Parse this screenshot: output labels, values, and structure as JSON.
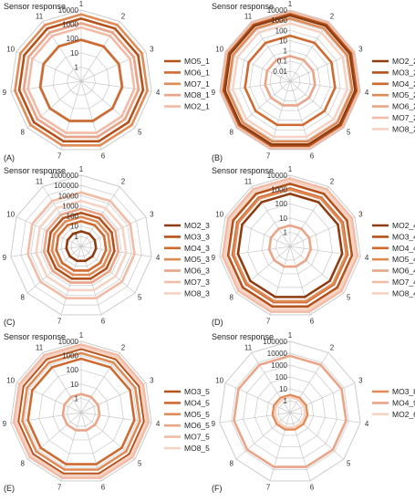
{
  "colors": {
    "c1": "#8e3c10",
    "c2": "#b5521b",
    "c3": "#cf6a30",
    "c4": "#e08a55",
    "c5": "#eaa487",
    "c6": "#f1bba5",
    "c7": "#f6d2c3",
    "grid": "#c8c8c8"
  },
  "chart_data": [
    {
      "type": "radar",
      "panel_label": "(A)",
      "title": "Sensor response",
      "axis_labels": [
        "1",
        "2",
        "3",
        "4",
        "5",
        "6",
        "7",
        "8",
        "9",
        "10",
        "11"
      ],
      "scale": "log",
      "ticks": [
        "1",
        "10",
        "100",
        "1000",
        "10000"
      ],
      "range": [
        0.1,
        10000
      ],
      "series": [
        {
          "name": "MO5_1",
          "color": "#b5521b",
          "values": [
            2500,
            2500,
            2500,
            2500,
            2500,
            2500,
            2500,
            2500,
            2500,
            2500,
            2500
          ]
        },
        {
          "name": "MO6_1",
          "color": "#cf6a30",
          "values": [
            80,
            80,
            80,
            80,
            80,
            80,
            80,
            80,
            80,
            80,
            80
          ]
        },
        {
          "name": "MO7_1",
          "color": "#e08a55",
          "values": [
            5000,
            5000,
            5000,
            5000,
            5000,
            5000,
            5000,
            5000,
            5000,
            5000,
            5000
          ]
        },
        {
          "name": "MO8_1",
          "color": "#eaa487",
          "values": [
            1200,
            1200,
            1200,
            1200,
            1200,
            1200,
            1200,
            1200,
            1200,
            1200,
            1200
          ]
        },
        {
          "name": "MO2_1",
          "color": "#f1bba5",
          "values": [
            600,
            600,
            600,
            600,
            600,
            600,
            600,
            600,
            600,
            600,
            600
          ]
        }
      ]
    },
    {
      "type": "radar",
      "panel_label": "(B)",
      "title": "Sensor response",
      "axis_labels": [
        "1",
        "2",
        "3",
        "4",
        "5",
        "6",
        "7",
        "8",
        "9",
        "10",
        "11"
      ],
      "scale": "log",
      "ticks": [
        "0.01",
        "0.1",
        "1",
        "10",
        "100",
        "1000",
        "10000"
      ],
      "range": [
        0.001,
        10000
      ],
      "series": [
        {
          "name": "MO2_2",
          "color": "#8e3c10",
          "values": [
            3000,
            3000,
            3000,
            3000,
            3000,
            3000,
            3000,
            3000,
            3000,
            3000,
            3000
          ]
        },
        {
          "name": "MO3_2",
          "color": "#b5521b",
          "values": [
            5000,
            5000,
            5000,
            5000,
            5000,
            5000,
            5000,
            5000,
            5000,
            5000,
            5000
          ]
        },
        {
          "name": "MO4_2",
          "color": "#cf6a30",
          "values": [
            30,
            30,
            30,
            30,
            30,
            30,
            30,
            30,
            30,
            30,
            30
          ]
        },
        {
          "name": "MO5_2",
          "color": "#e08a55",
          "values": [
            1500,
            1500,
            1500,
            1500,
            1500,
            1500,
            1500,
            1500,
            1500,
            1500,
            1500
          ]
        },
        {
          "name": "MO6_2",
          "color": "#eaa487",
          "values": [
            0.3,
            0.3,
            0.3,
            0.3,
            0.3,
            0.3,
            0.3,
            0.3,
            0.3,
            0.3,
            0.3
          ]
        },
        {
          "name": "MO7_2",
          "color": "#f1bba5",
          "values": [
            7000,
            7000,
            7000,
            7000,
            7000,
            7000,
            7000,
            7000,
            7000,
            7000,
            7000
          ]
        },
        {
          "name": "MO8_2",
          "color": "#f6d2c3",
          "values": [
            500,
            500,
            500,
            500,
            500,
            500,
            500,
            500,
            500,
            500,
            500
          ]
        }
      ]
    },
    {
      "type": "radar",
      "panel_label": "(C)",
      "title": "Sensor response",
      "axis_labels": [
        "1",
        "2",
        "3",
        "4",
        "5",
        "6",
        "7",
        "8",
        "9",
        "10",
        "11"
      ],
      "scale": "log",
      "ticks": [
        "1",
        "10",
        "100",
        "1000",
        "10000",
        "100000",
        "1000000"
      ],
      "range": [
        0.1,
        1000000
      ],
      "series": [
        {
          "name": "MO2_3",
          "color": "#8e3c10",
          "values": [
            3,
            3,
            3,
            3,
            3,
            3,
            3,
            3,
            3,
            3,
            3
          ]
        },
        {
          "name": "MO3_3",
          "color": "#b5521b",
          "values": [
            200,
            200,
            200,
            200,
            200,
            200,
            200,
            200,
            200,
            200,
            200
          ]
        },
        {
          "name": "MO4_3",
          "color": "#cf6a30",
          "values": [
            30,
            30,
            30,
            30,
            30,
            30,
            30,
            30,
            30,
            30,
            30
          ]
        },
        {
          "name": "MO5_3",
          "color": "#e08a55",
          "values": [
            80,
            80,
            80,
            80,
            80,
            80,
            80,
            80,
            80,
            80,
            80
          ]
        },
        {
          "name": "MO6_3",
          "color": "#eaa487",
          "values": [
            500,
            500,
            500,
            500,
            500,
            500,
            500,
            500,
            500,
            500,
            500
          ]
        },
        {
          "name": "MO7_3",
          "color": "#f1bba5",
          "values": [
            20000,
            20000,
            20000,
            20000,
            20000,
            20000,
            20000,
            20000,
            20000,
            20000,
            20000
          ]
        },
        {
          "name": "MO8_3",
          "color": "#f6d2c3",
          "values": [
            3000,
            3000,
            3000,
            3000,
            3000,
            3000,
            3000,
            3000,
            3000,
            3000,
            3000
          ]
        }
      ]
    },
    {
      "type": "radar",
      "panel_label": "(D)",
      "title": "Sensor response",
      "axis_labels": [
        "1",
        "2",
        "3",
        "4",
        "5",
        "6",
        "7",
        "8",
        "9",
        "10",
        "11"
      ],
      "scale": "log",
      "ticks": [
        "1",
        "10",
        "100",
        "1000",
        "10000"
      ],
      "range": [
        0.1,
        10000
      ],
      "series": [
        {
          "name": "MO2_4",
          "color": "#8e3c10",
          "values": [
            500,
            500,
            500,
            500,
            500,
            500,
            500,
            500,
            500,
            500,
            500
          ]
        },
        {
          "name": "MO3_4",
          "color": "#b5521b",
          "values": [
            2500,
            2500,
            2500,
            2500,
            2500,
            2500,
            2500,
            2500,
            2500,
            2500,
            2500
          ]
        },
        {
          "name": "MO4_4",
          "color": "#cf6a30",
          "values": [
            1200,
            1200,
            1200,
            1200,
            1200,
            1200,
            1200,
            1200,
            1200,
            1200,
            1200
          ]
        },
        {
          "name": "MO5_4",
          "color": "#e08a55",
          "values": [
            1000,
            1000,
            1000,
            1000,
            1000,
            1000,
            1000,
            1000,
            1000,
            1000,
            1000
          ]
        },
        {
          "name": "MO6_4",
          "color": "#eaa487",
          "values": [
            3,
            3,
            3,
            3,
            3,
            3,
            3,
            3,
            3,
            3,
            3
          ]
        },
        {
          "name": "MO7_4",
          "color": "#f1bba5",
          "values": [
            6000,
            6000,
            6000,
            6000,
            6000,
            6000,
            6000,
            6000,
            6000,
            6000,
            6000
          ]
        },
        {
          "name": "MO8_4",
          "color": "#f6d2c3",
          "values": [
            4000,
            4000,
            4000,
            4000,
            4000,
            4000,
            4000,
            4000,
            4000,
            4000,
            4000
          ]
        }
      ]
    },
    {
      "type": "radar",
      "panel_label": "(E)",
      "title": "Sensor response",
      "axis_labels": [
        "1",
        "2",
        "3",
        "4",
        "5",
        "6",
        "7",
        "8",
        "9",
        "10",
        "11"
      ],
      "scale": "log",
      "ticks": [
        "1",
        "10",
        "100",
        "1000",
        "10000"
      ],
      "range": [
        0.1,
        10000
      ],
      "series": [
        {
          "name": "MO3_5",
          "color": "#b5521b",
          "values": [
            3000,
            3000,
            3000,
            3000,
            3000,
            3000,
            3000,
            3000,
            3000,
            3000,
            3000
          ]
        },
        {
          "name": "MO4_5",
          "color": "#cf6a30",
          "values": [
            600,
            600,
            600,
            600,
            600,
            600,
            600,
            600,
            600,
            600,
            600
          ]
        },
        {
          "name": "MO5_5",
          "color": "#e08a55",
          "values": [
            1500,
            1500,
            1500,
            1500,
            1500,
            1500,
            1500,
            1500,
            1500,
            1500,
            1500
          ]
        },
        {
          "name": "MO6_5",
          "color": "#eaa487",
          "values": [
            2,
            2,
            2,
            2,
            2,
            2,
            2,
            2,
            2,
            2,
            2
          ]
        },
        {
          "name": "MO7_5",
          "color": "#f1bba5",
          "values": [
            6000,
            6000,
            6000,
            6000,
            6000,
            6000,
            6000,
            6000,
            6000,
            6000,
            6000
          ]
        },
        {
          "name": "MO8_5",
          "color": "#f6d2c3",
          "values": [
            4000,
            4000,
            4000,
            4000,
            4000,
            4000,
            4000,
            4000,
            4000,
            4000,
            4000
          ]
        }
      ]
    },
    {
      "type": "radar",
      "panel_label": "(F)",
      "title": "Sensor response",
      "axis_labels": [
        "1",
        "2",
        "3",
        "4",
        "5",
        "6",
        "7",
        "8",
        "9",
        "10",
        "11"
      ],
      "scale": "log",
      "ticks": [
        "1",
        "10",
        "100",
        "1000",
        "10000",
        "100000"
      ],
      "range": [
        0.1,
        100000
      ],
      "series": [
        {
          "name": "MO3_8",
          "color": "#e08a55",
          "values": [
            3,
            3,
            3,
            3,
            3,
            3,
            3,
            3,
            3,
            3,
            3
          ]
        },
        {
          "name": "MO4_9",
          "color": "#eaa487",
          "values": [
            6000,
            6000,
            6000,
            6000,
            6000,
            6000,
            6000,
            6000,
            6000,
            6000,
            6000
          ]
        },
        {
          "name": "MO2_6",
          "color": "#f6d2c3",
          "values": [
            2,
            2,
            2,
            2,
            2,
            2,
            2,
            2,
            2,
            2,
            2
          ]
        }
      ]
    }
  ]
}
